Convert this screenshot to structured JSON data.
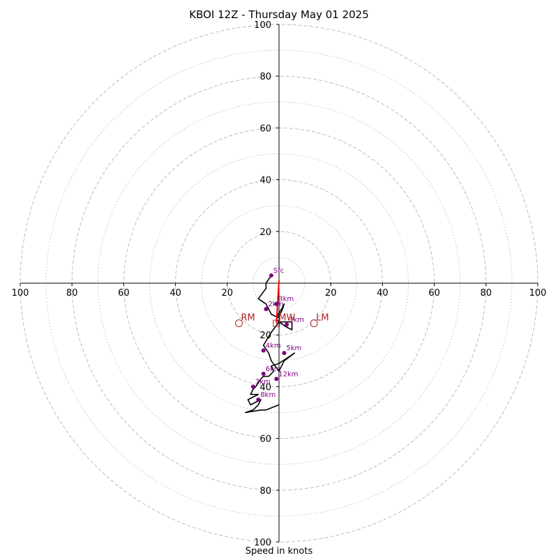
{
  "chart_data": {
    "type": "scatter",
    "title": "KBOI 12Z - Thursday May 01 2025",
    "xlabel": "Speed in knots",
    "ylabel": "",
    "rings_major": [
      20,
      40,
      60,
      80,
      100
    ],
    "rings_minor": [
      10,
      30,
      50,
      70,
      90
    ],
    "xlim": [
      -100,
      100
    ],
    "ylim": [
      -100,
      100
    ],
    "x_tick_labels": [
      "100",
      "80",
      "60",
      "40",
      "20",
      "20",
      "40",
      "60",
      "80",
      "100"
    ],
    "x_tick_values": [
      -100,
      -80,
      -60,
      -40,
      -20,
      20,
      40,
      60,
      80,
      100
    ],
    "y_tick_labels": [
      "100",
      "80",
      "60",
      "40",
      "20",
      "20",
      "40",
      "60",
      "80",
      "100"
    ],
    "y_tick_values": [
      100,
      80,
      60,
      40,
      20,
      -20,
      -40,
      -60,
      -80,
      -100
    ],
    "grid": true,
    "hodograph": [
      [
        -3,
        3
      ],
      [
        -5,
        0
      ],
      [
        -5,
        -2
      ],
      [
        -8,
        -6
      ],
      [
        -5,
        -8
      ],
      [
        -3,
        -12
      ],
      [
        -1,
        -13
      ],
      [
        1,
        -10
      ],
      [
        2,
        -8
      ],
      [
        1,
        -11
      ],
      [
        -1,
        -14
      ],
      [
        0,
        -15
      ],
      [
        3,
        -17
      ],
      [
        5,
        -18
      ],
      [
        5,
        -15
      ],
      [
        2,
        -15
      ],
      [
        0,
        -15
      ],
      [
        -3,
        -19
      ],
      [
        -6,
        -24
      ],
      [
        -4,
        -27
      ],
      [
        -3,
        -30
      ],
      [
        0,
        -34
      ],
      [
        2,
        -30
      ],
      [
        6,
        -27
      ],
      [
        0,
        -31
      ],
      [
        -3,
        -32
      ],
      [
        -2,
        -34
      ],
      [
        -4,
        -36
      ],
      [
        -6,
        -36
      ],
      [
        -7,
        -37
      ],
      [
        -9,
        -40
      ],
      [
        -10,
        -41
      ],
      [
        -11,
        -43
      ],
      [
        -8,
        -43
      ],
      [
        -12,
        -45
      ],
      [
        -11,
        -47
      ],
      [
        -7,
        -45
      ],
      [
        -8,
        -47
      ],
      [
        -10,
        -49
      ],
      [
        -13,
        -50
      ],
      [
        -7,
        -49
      ],
      [
        -5,
        -49
      ],
      [
        0,
        -47
      ]
    ],
    "height_markers": [
      {
        "label": "Sfc",
        "u": -3,
        "v": 3
      },
      {
        "label": "1km",
        "u": 3,
        "v": -16
      },
      {
        "label": "2km",
        "u": -5,
        "v": -10
      },
      {
        "label": "3km",
        "u": -1,
        "v": -8
      },
      {
        "label": "4km",
        "u": -6,
        "v": -26
      },
      {
        "label": "5km",
        "u": 2,
        "v": -27
      },
      {
        "label": "6km",
        "u": -6,
        "v": -35
      },
      {
        "label": "7km",
        "u": -10,
        "v": -40
      },
      {
        "label": "8km",
        "u": -8,
        "v": -45
      },
      {
        "label": "12km",
        "u": -1,
        "v": -37
      }
    ],
    "storm_motion": [
      {
        "label": "RM",
        "u": -15.5,
        "v": -15.5,
        "marker": "circle"
      },
      {
        "label": "LM",
        "u": 13.5,
        "v": -15.5,
        "marker": "circle"
      },
      {
        "label": "MW",
        "u": -1,
        "v": -15.5,
        "marker": "square"
      }
    ],
    "shear_vector": {
      "from": [
        -1,
        -15.5
      ],
      "to": [
        0,
        1
      ]
    },
    "colors": {
      "hodograph": "#000000",
      "height_markers": "#800080",
      "storm_motion": "#b22222",
      "shear": "#ff0000",
      "grid": "#bbbbbb",
      "axes": "#000000"
    }
  }
}
